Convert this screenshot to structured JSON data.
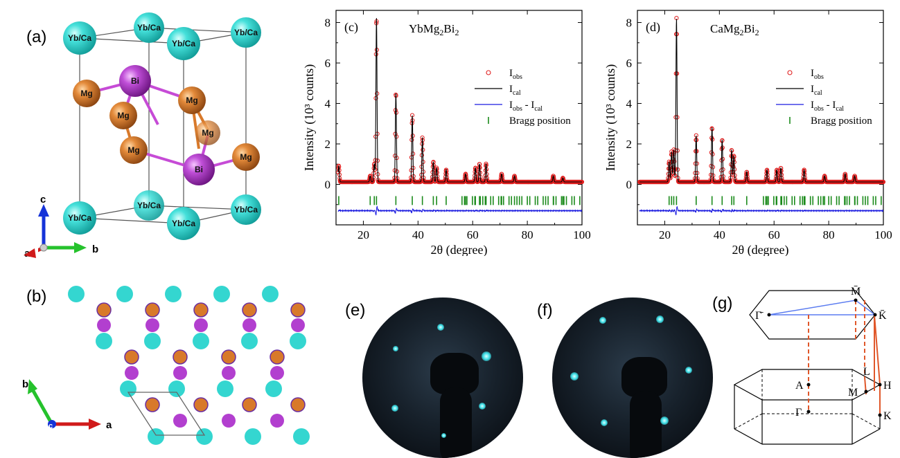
{
  "panels": {
    "a": "(a)",
    "b": "(b)",
    "c": "(c)",
    "d": "(d)",
    "e": "(e)",
    "f": "(f)",
    "g": "(g)"
  },
  "crystal": {
    "site_yb_ca": "Yb/Ca",
    "site_mg": "Mg",
    "site_bi": "Bi",
    "axes": {
      "a": "a",
      "b": "b",
      "c": "c"
    },
    "colors": {
      "yb_ca": "#34d6d0",
      "mg": "#d8792a",
      "bi": "#b23fcf",
      "bond_bi_mg": "#c64bd6",
      "bond_mg": "#d8792a"
    }
  },
  "chart_data": [
    {
      "type": "line",
      "panel": "(c)",
      "compound": "YbMg2Bi2",
      "xlabel": "2θ (degree)",
      "ylabel": "Intensity (10³ counts)",
      "xlim": [
        10,
        100
      ],
      "ylim": [
        -2,
        8.6
      ],
      "xticks": [
        20,
        40,
        60,
        80,
        100
      ],
      "yticks": [
        0,
        2,
        4,
        6,
        8
      ],
      "legend": [
        "Iobs",
        "Ical",
        "Iobs - Ical",
        "Bragg position"
      ],
      "legend_placement": "right",
      "peaks": [
        {
          "x": 11.0,
          "y": 0.8
        },
        {
          "x": 22.5,
          "y": 0.3
        },
        {
          "x": 24.0,
          "y": 0.9
        },
        {
          "x": 24.8,
          "y": 8.1
        },
        {
          "x": 31.9,
          "y": 4.4
        },
        {
          "x": 37.9,
          "y": 3.3
        },
        {
          "x": 41.6,
          "y": 2.2
        },
        {
          "x": 45.6,
          "y": 1.0
        },
        {
          "x": 46.8,
          "y": 0.7
        },
        {
          "x": 50.3,
          "y": 0.6
        },
        {
          "x": 57.4,
          "y": 0.4
        },
        {
          "x": 61.0,
          "y": 0.7
        },
        {
          "x": 62.5,
          "y": 0.9
        },
        {
          "x": 64.9,
          "y": 0.9
        },
        {
          "x": 70.6,
          "y": 0.4
        },
        {
          "x": 75.3,
          "y": 0.3
        },
        {
          "x": 89.5,
          "y": 0.3
        },
        {
          "x": 93.0,
          "y": 0.2
        }
      ],
      "diff_offset": -1.3,
      "bragg_y": -0.8
    },
    {
      "type": "line",
      "panel": "(d)",
      "compound": "CaMg2Bi2",
      "xlabel": "2θ (degree)",
      "ylabel": "Intensity (10³ counts)",
      "xlim": [
        10,
        100
      ],
      "ylim": [
        -2,
        8.6
      ],
      "xticks": [
        20,
        40,
        60,
        80,
        100
      ],
      "yticks": [
        0,
        2,
        4,
        6,
        8
      ],
      "legend": [
        "Iobs",
        "Ical",
        "Iobs - Ical",
        "Bragg position"
      ],
      "legend_placement": "right",
      "peaks": [
        {
          "x": 21.6,
          "y": 1.0
        },
        {
          "x": 22.5,
          "y": 1.5
        },
        {
          "x": 23.3,
          "y": 1.6
        },
        {
          "x": 24.3,
          "y": 8.1
        },
        {
          "x": 31.5,
          "y": 2.3
        },
        {
          "x": 37.3,
          "y": 2.7
        },
        {
          "x": 41.0,
          "y": 2.1
        },
        {
          "x": 44.5,
          "y": 1.6
        },
        {
          "x": 45.3,
          "y": 1.3
        },
        {
          "x": 50.0,
          "y": 0.5
        },
        {
          "x": 57.4,
          "y": 0.6
        },
        {
          "x": 61.0,
          "y": 0.6
        },
        {
          "x": 62.5,
          "y": 0.7
        },
        {
          "x": 71.0,
          "y": 0.6
        },
        {
          "x": 78.5,
          "y": 0.3
        },
        {
          "x": 86.0,
          "y": 0.4
        },
        {
          "x": 89.5,
          "y": 0.3
        }
      ],
      "diff_offset": -1.3,
      "bragg_y": -0.8
    }
  ],
  "legend_text": {
    "obs_main": "I",
    "obs_sub": "obs",
    "cal_main": "I",
    "cal_sub": "cal",
    "diff_a": "I",
    "diff_a_sub": "obs",
    "diff_mid": " - I",
    "diff_b_sub": "cal",
    "bragg": "Bragg position"
  },
  "brillouin": {
    "gamma_bar": "Γ̄",
    "m_bar": "M̄",
    "k_bar": "K̄",
    "L": "L",
    "H": "H",
    "A": "A",
    "M": "M",
    "Gamma": "Γ",
    "K": "K"
  }
}
